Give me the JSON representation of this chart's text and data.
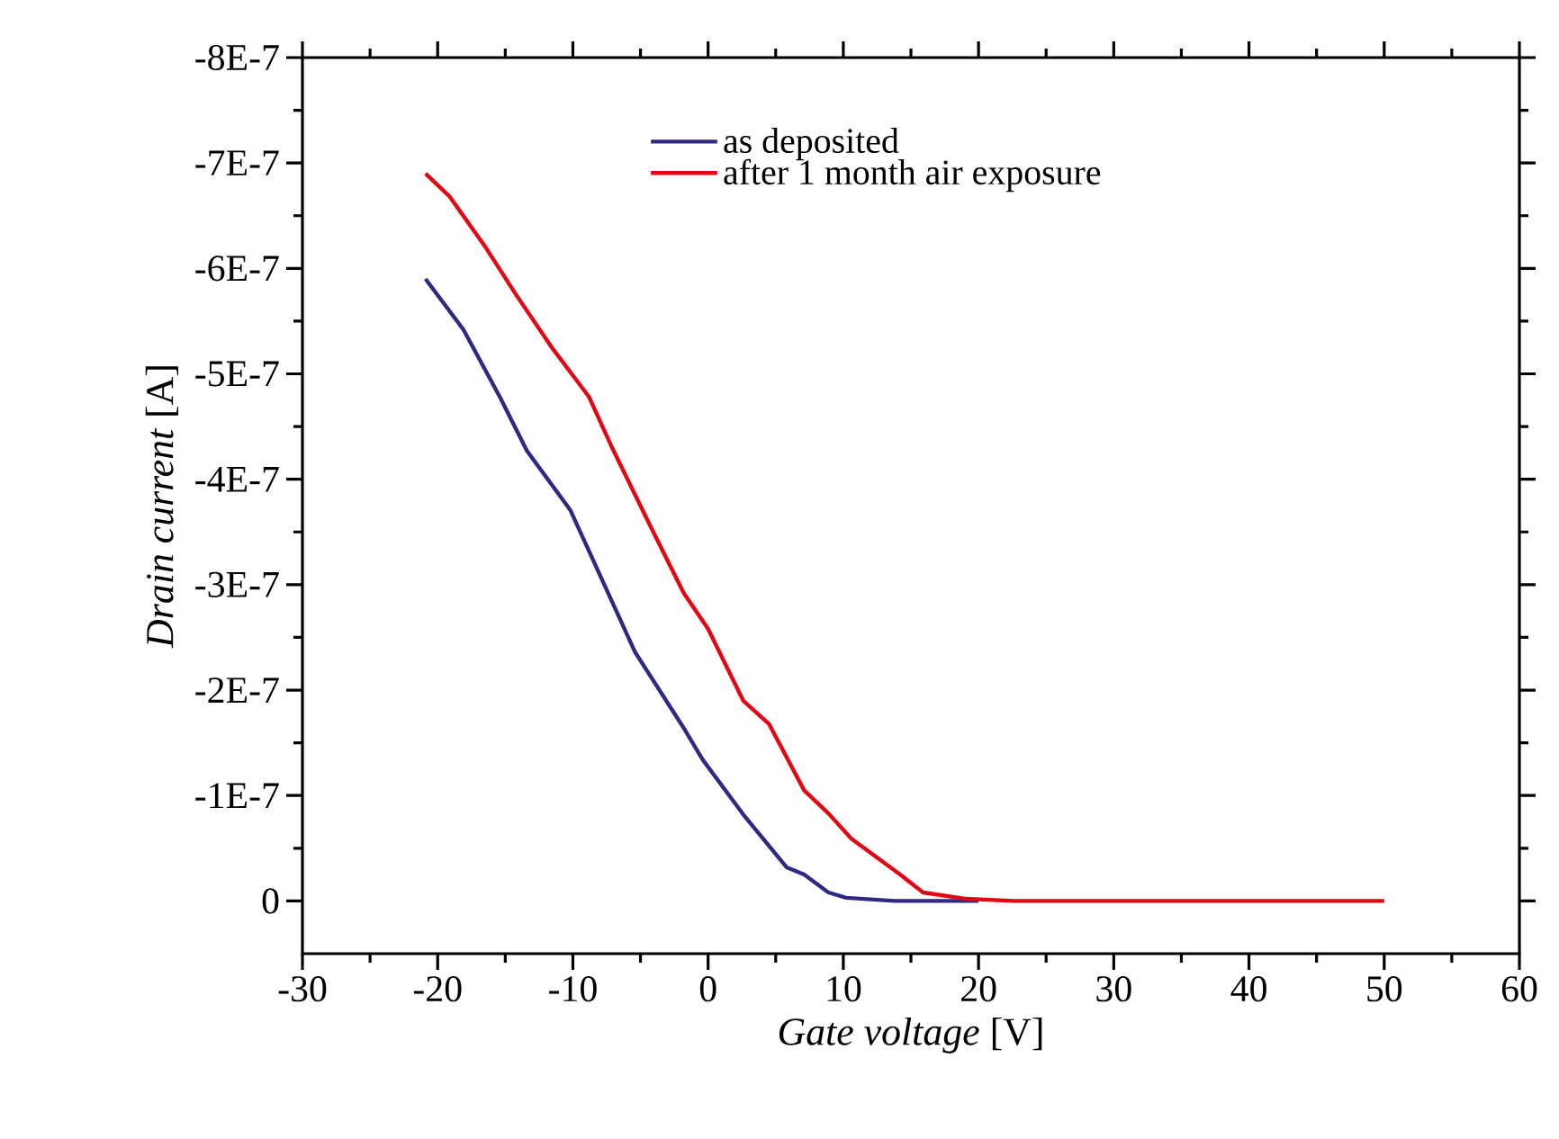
{
  "chart_data": {
    "type": "line",
    "xlabel": "*Gate voltage*  [V]",
    "ylabel": "*Drain current*  [A]",
    "xlim": [
      -30,
      60
    ],
    "xticks": [
      -30,
      -20,
      -10,
      0,
      10,
      20,
      30,
      40,
      50,
      60
    ],
    "ylim": [
      5e-08,
      -8e-07
    ],
    "yticks": [
      {
        "value": -8e-07,
        "label": "-8E-7"
      },
      {
        "value": -7e-07,
        "label": "-7E-7"
      },
      {
        "value": -6e-07,
        "label": "-6E-7"
      },
      {
        "value": -5e-07,
        "label": "-5E-7"
      },
      {
        "value": -4e-07,
        "label": "-4E-7"
      },
      {
        "value": -3e-07,
        "label": "-3E-7"
      },
      {
        "value": -2e-07,
        "label": "-2E-7"
      },
      {
        "value": -1e-07,
        "label": "-1E-7"
      },
      0
    ],
    "legend": "top right",
    "grid": false,
    "marker": "none",
    "line_style": "solid",
    "series": [
      {
        "name": "as deposited",
        "color": "#2e2a84",
        "x": [
          -20.9,
          -18.1,
          -15.4,
          -13.4,
          -10.2,
          -5.4,
          -1.8,
          -0.4,
          2.6,
          5.8,
          7.1,
          8.9,
          10.2,
          13.8,
          20
        ],
        "values": [
          -5.9e-07,
          -5.42e-07,
          -4.78e-07,
          -4.27e-07,
          -3.71e-07,
          -2.36e-07,
          -1.64e-07,
          -1.34e-07,
          -8.2e-08,
          -3.2e-08,
          -2.5e-08,
          -8e-09,
          -3e-09,
          0,
          0
        ]
      },
      {
        "name": "after 1 month air exposure",
        "color": "#e30613",
        "x": [
          -20.9,
          -19.1,
          -16.4,
          -14.2,
          -11.5,
          -8.8,
          -7.1,
          -4.4,
          -1.8,
          0,
          2.6,
          4.5,
          7.1,
          8.9,
          10.6,
          14.2,
          15.9,
          19.1,
          22.6,
          30,
          40,
          50
        ],
        "values": [
          -6.9e-07,
          -6.68e-07,
          -6.19e-07,
          -5.75e-07,
          -5.24e-07,
          -4.78e-07,
          -4.3e-07,
          -3.59e-07,
          -2.92e-07,
          -2.58e-07,
          -1.9e-07,
          -1.68e-07,
          -1.05e-07,
          -8.3e-08,
          -5.9e-08,
          -2.5e-08,
          -8e-09,
          -2e-09,
          0,
          0,
          0,
          0
        ]
      }
    ]
  }
}
